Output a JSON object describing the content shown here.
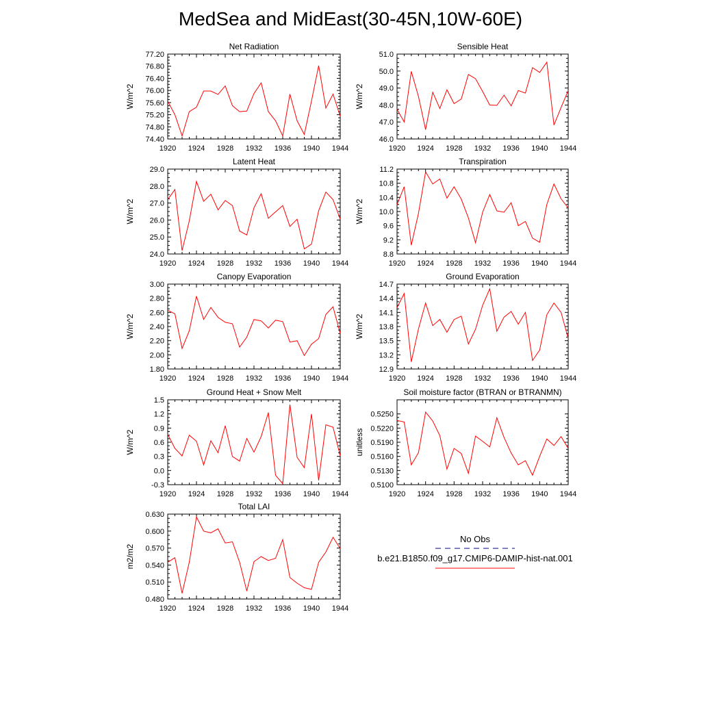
{
  "title": "MedSea and MidEast(30-45N,10W-60E)",
  "colors": {
    "series": "#ff0000",
    "obs": "#000080",
    "axis": "#000000"
  },
  "legend": {
    "obs_label": "No Obs",
    "model_label": "b.e21.B1850.f09_g17.CMIP6-DAMIP-hist-nat.001"
  },
  "chart_data": [
    {
      "type": "line",
      "title": "Net Radiation",
      "ylabel": "W/m^2",
      "xlim": [
        1920,
        1944
      ],
      "ylim": [
        74.4,
        77.2
      ],
      "xticks": [
        1920,
        1924,
        1928,
        1932,
        1936,
        1940,
        1944
      ],
      "yticks": [
        "74.40",
        "74.80",
        "75.20",
        "75.60",
        "76.00",
        "76.40",
        "76.80",
        "77.20"
      ],
      "series": [
        {
          "x_start": 1920,
          "values": [
            75.65,
            75.2,
            74.5,
            75.3,
            75.45,
            75.98,
            75.98,
            75.87,
            76.15,
            75.5,
            75.3,
            75.32,
            75.9,
            76.25,
            75.3,
            75.0,
            74.5,
            75.88,
            75.0,
            74.55,
            75.65,
            76.82,
            75.42,
            75.88,
            75.15
          ]
        }
      ]
    },
    {
      "type": "line",
      "title": "Sensible Heat",
      "ylabel": "W/m^2",
      "xlim": [
        1920,
        1944
      ],
      "ylim": [
        46.0,
        51.0
      ],
      "xticks": [
        1920,
        1924,
        1928,
        1932,
        1936,
        1940,
        1944
      ],
      "yticks": [
        "46.0",
        "47.0",
        "48.0",
        "49.0",
        "50.0",
        "51.0"
      ],
      "series": [
        {
          "x_start": 1920,
          "values": [
            47.75,
            47.0,
            49.98,
            48.5,
            46.55,
            48.75,
            47.8,
            48.9,
            48.08,
            48.35,
            49.8,
            49.55,
            48.8,
            48.0,
            47.98,
            48.58,
            47.95,
            48.85,
            48.7,
            50.2,
            49.92,
            50.52,
            46.82,
            47.85,
            48.85
          ]
        }
      ]
    },
    {
      "type": "line",
      "title": "Latent Heat",
      "ylabel": "W/m^2",
      "xlim": [
        1920,
        1944
      ],
      "ylim": [
        24.0,
        29.0
      ],
      "xticks": [
        1920,
        1924,
        1928,
        1932,
        1936,
        1940,
        1944
      ],
      "yticks": [
        "24.0",
        "25.0",
        "26.0",
        "27.0",
        "28.0",
        "29.0"
      ],
      "series": [
        {
          "x_start": 1920,
          "values": [
            27.2,
            27.8,
            24.2,
            25.95,
            28.28,
            27.1,
            27.52,
            26.6,
            27.15,
            26.85,
            25.35,
            25.12,
            26.72,
            27.55,
            26.1,
            26.48,
            26.85,
            25.62,
            26.05,
            24.3,
            24.58,
            26.55,
            27.65,
            27.2,
            26.05
          ]
        }
      ]
    },
    {
      "type": "line",
      "title": "Transpiration",
      "ylabel": "W/m^2",
      "xlim": [
        1920,
        1944
      ],
      "ylim": [
        8.8,
        11.2
      ],
      "xticks": [
        1920,
        1924,
        1928,
        1932,
        1936,
        1940,
        1944
      ],
      "yticks": [
        "8.8",
        "9.2",
        "9.6",
        "10.0",
        "10.4",
        "10.8",
        "11.2"
      ],
      "series": [
        {
          "x_start": 1920,
          "values": [
            10.2,
            10.7,
            9.05,
            9.95,
            11.12,
            10.78,
            10.92,
            10.38,
            10.7,
            10.35,
            9.82,
            9.12,
            9.98,
            10.48,
            10.02,
            9.98,
            10.25,
            9.6,
            9.72,
            9.25,
            9.13,
            10.2,
            10.78,
            10.36,
            10.1
          ]
        }
      ]
    },
    {
      "type": "line",
      "title": "Canopy Evaporation",
      "ylabel": "W/m^2",
      "xlim": [
        1920,
        1944
      ],
      "ylim": [
        1.8,
        3.0
      ],
      "xticks": [
        1920,
        1924,
        1928,
        1932,
        1936,
        1940,
        1944
      ],
      "yticks": [
        "1.80",
        "2.00",
        "2.20",
        "2.40",
        "2.60",
        "2.80",
        "3.00"
      ],
      "series": [
        {
          "x_start": 1920,
          "values": [
            2.63,
            2.58,
            2.09,
            2.34,
            2.83,
            2.5,
            2.67,
            2.53,
            2.46,
            2.44,
            2.11,
            2.25,
            2.5,
            2.48,
            2.38,
            2.49,
            2.47,
            2.18,
            2.2,
            1.99,
            2.15,
            2.23,
            2.57,
            2.68,
            2.3
          ]
        }
      ]
    },
    {
      "type": "line",
      "title": "Ground Evaporation",
      "ylabel": "W/m^2",
      "xlim": [
        1920,
        1944
      ],
      "ylim": [
        12.9,
        14.7
      ],
      "xticks": [
        1920,
        1924,
        1928,
        1932,
        1936,
        1940,
        1944
      ],
      "yticks": [
        "12.9",
        "13.2",
        "13.5",
        "13.8",
        "14.1",
        "14.4",
        "14.7"
      ],
      "series": [
        {
          "x_start": 1920,
          "values": [
            14.2,
            14.5,
            13.05,
            13.75,
            14.3,
            13.82,
            13.95,
            13.68,
            13.95,
            14.02,
            13.43,
            13.74,
            14.25,
            14.6,
            13.7,
            14.0,
            14.12,
            13.85,
            14.1,
            13.08,
            13.3,
            14.05,
            14.3,
            14.1,
            13.55
          ]
        }
      ]
    },
    {
      "type": "line",
      "title": "Ground Heat + Snow Melt",
      "ylabel": "W/m^2",
      "xlim": [
        1920,
        1944
      ],
      "ylim": [
        -0.3,
        1.5
      ],
      "xticks": [
        1920,
        1924,
        1928,
        1932,
        1936,
        1940,
        1944
      ],
      "yticks": [
        "-0.3",
        "0.0",
        "0.3",
        "0.6",
        "0.9",
        "1.2",
        "1.5"
      ],
      "series": [
        {
          "x_start": 1920,
          "values": [
            0.77,
            0.47,
            0.31,
            0.75,
            0.62,
            0.12,
            0.63,
            0.38,
            0.95,
            0.3,
            0.2,
            0.68,
            0.39,
            0.72,
            1.23,
            -0.1,
            -0.28,
            1.4,
            0.28,
            0.06,
            1.2,
            -0.21,
            0.97,
            0.92,
            0.31
          ]
        }
      ]
    },
    {
      "type": "line",
      "title": "Soil moisture factor (BTRAN or BTRANMN)",
      "ylabel": "unitless",
      "xlim": [
        1920,
        1944
      ],
      "ylim": [
        0.51,
        0.528
      ],
      "xticks": [
        1920,
        1924,
        1928,
        1932,
        1936,
        1940,
        1944
      ],
      "yticks": [
        "0.5100",
        "0.5130",
        "0.5160",
        "0.5190",
        "0.5220",
        "0.5250"
      ],
      "series": [
        {
          "x_start": 1920,
          "values": [
            0.5236,
            0.5233,
            0.5142,
            0.5168,
            0.5254,
            0.5235,
            0.5204,
            0.5133,
            0.5177,
            0.5166,
            0.5124,
            0.5203,
            0.5192,
            0.518,
            0.5242,
            0.52,
            0.5167,
            0.5142,
            0.5151,
            0.512,
            0.516,
            0.5197,
            0.5183,
            0.5202,
            0.5177
          ]
        }
      ]
    },
    {
      "type": "line",
      "title": "Total LAI",
      "ylabel": "m2/m2",
      "xlim": [
        1920,
        1944
      ],
      "ylim": [
        0.48,
        0.63
      ],
      "xticks": [
        1920,
        1924,
        1928,
        1932,
        1936,
        1940,
        1944
      ],
      "yticks": [
        "0.480",
        "0.510",
        "0.540",
        "0.570",
        "0.600",
        "0.630"
      ],
      "series": [
        {
          "x_start": 1920,
          "values": [
            0.545,
            0.553,
            0.49,
            0.545,
            0.625,
            0.6,
            0.597,
            0.604,
            0.579,
            0.581,
            0.545,
            0.494,
            0.546,
            0.555,
            0.548,
            0.552,
            0.585,
            0.518,
            0.508,
            0.5,
            0.497,
            0.545,
            0.563,
            0.589,
            0.569
          ]
        }
      ]
    }
  ]
}
